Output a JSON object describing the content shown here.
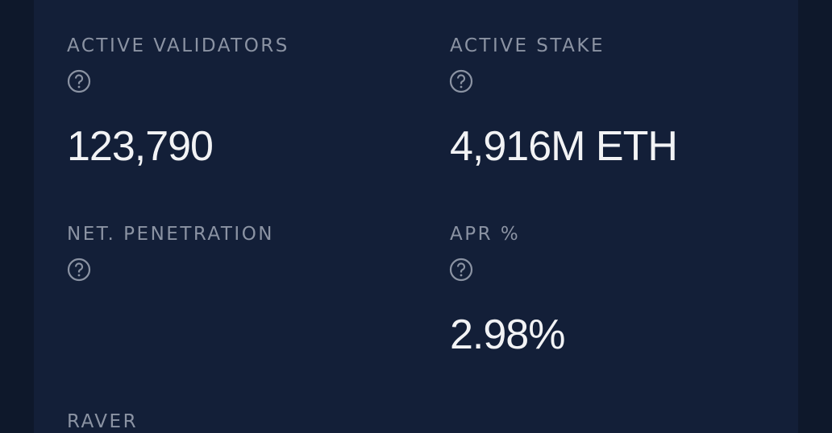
{
  "stats": [
    {
      "label": "ACTIVE VALIDATORS",
      "value": "123,790"
    },
    {
      "label": "ACTIVE STAKE",
      "value": "4,916M ETH"
    },
    {
      "label": "NET. PENETRATION"
    },
    {
      "label": "APR %",
      "value": "2.98%"
    },
    {
      "label": "RAVER"
    }
  ]
}
